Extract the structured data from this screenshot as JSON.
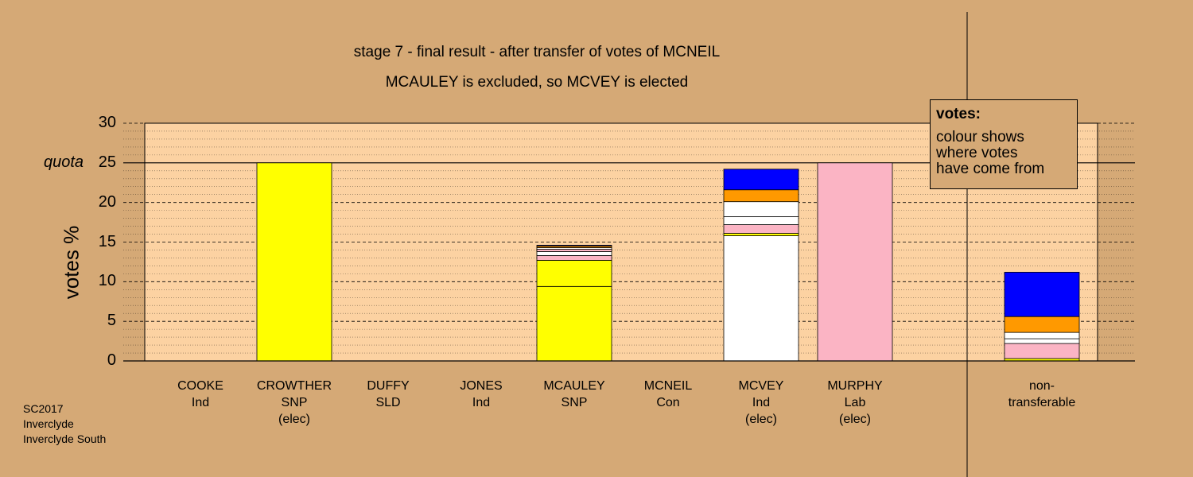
{
  "chart_data": {
    "type": "bar",
    "stacked": true,
    "title": "stage 7 - final result - after transfer of votes of MCNEIL",
    "subtitle": "MCAULEY is excluded, so MCVEY is elected",
    "ylabel": "votes %",
    "ylim": [
      0,
      30
    ],
    "yticks": [
      "0",
      "5",
      "10",
      "15",
      "20",
      "25",
      "30"
    ],
    "quota": 25,
    "quota_label": "quota",
    "grid": true,
    "categories": [
      {
        "name": "COOKE",
        "party": "Ind",
        "status": ""
      },
      {
        "name": "CROWTHER",
        "party": "SNP",
        "status": "(elec)"
      },
      {
        "name": "DUFFY",
        "party": "SLD",
        "status": ""
      },
      {
        "name": "JONES",
        "party": "Ind",
        "status": ""
      },
      {
        "name": "MCAULEY",
        "party": "SNP",
        "status": ""
      },
      {
        "name": "MCNEIL",
        "party": "Con",
        "status": ""
      },
      {
        "name": "MCVEY",
        "party": "Ind",
        "status": "(elec)"
      },
      {
        "name": "MURPHY",
        "party": "Lab",
        "status": "(elec)"
      },
      {
        "name": "non-",
        "party": "transferable",
        "status": ""
      }
    ],
    "stacks": [
      [],
      [
        {
          "color": "#ffff00",
          "value": 25.0
        }
      ],
      [],
      [],
      [
        {
          "color": "#ffff00",
          "value": 9.4
        },
        {
          "color": "#ffff00",
          "value": 3.3
        },
        {
          "color": "#fbb4c4",
          "value": 0.6
        },
        {
          "color": "#ffffff",
          "value": 0.5
        },
        {
          "color": "#fbb4c4",
          "value": 0.3
        },
        {
          "color": "#ffffff",
          "value": 0.2
        },
        {
          "color": "#ff9900",
          "value": 0.2
        },
        {
          "color": "#0000ff",
          "value": 0.1
        }
      ],
      [],
      [
        {
          "color": "#ffffff",
          "value": 15.8
        },
        {
          "color": "#ffff00",
          "value": 0.3
        },
        {
          "color": "#fbb4c4",
          "value": 1.1
        },
        {
          "color": "#ffffff",
          "value": 1.0
        },
        {
          "color": "#ffffff",
          "value": 1.9
        },
        {
          "color": "#ff9900",
          "value": 1.5
        },
        {
          "color": "#0000ff",
          "value": 2.6
        }
      ],
      [
        {
          "color": "#fbb4c4",
          "value": 25.0
        }
      ],
      [
        {
          "color": "#ffff00",
          "value": 0.3
        },
        {
          "color": "#fbb4c4",
          "value": 1.9
        },
        {
          "color": "#ffffff",
          "value": 0.6
        },
        {
          "color": "#ffffff",
          "value": 0.8
        },
        {
          "color": "#ff9900",
          "value": 2.0
        },
        {
          "color": "#0000ff",
          "value": 5.6
        }
      ]
    ],
    "legend": {
      "title": "votes:",
      "lines": [
        "colour shows",
        "where votes",
        "have come from"
      ],
      "placement": "top-right"
    },
    "colors": {
      "background": "#d5a976",
      "plot_area": "#fcd2a2",
      "SNP": "#ffff00",
      "Lab": "#fbb4c4",
      "Ind": "#ffffff",
      "Con": "#0000ff",
      "other": "#ff9900"
    }
  },
  "footer": [
    "SC2017",
    "Inverclyde",
    "Inverclyde South"
  ]
}
